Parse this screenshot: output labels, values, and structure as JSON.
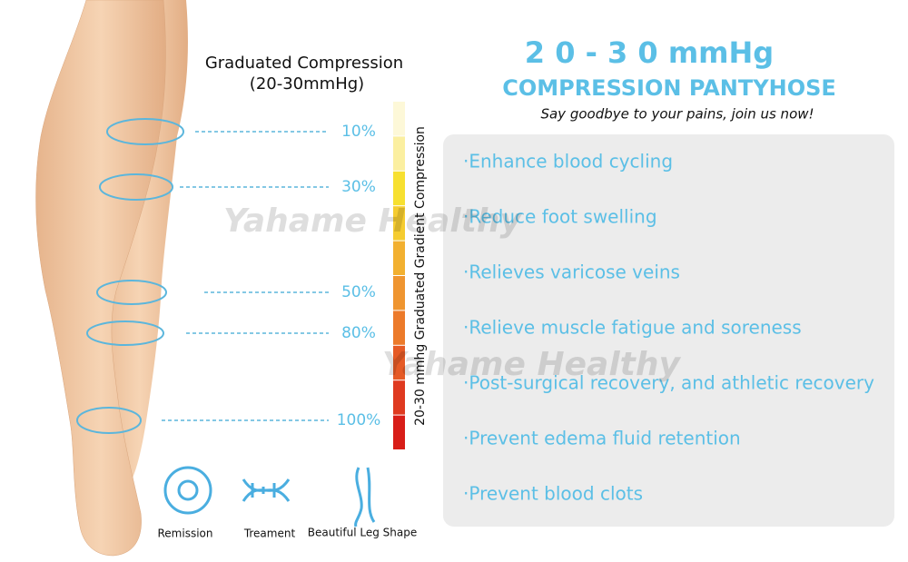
{
  "left_panel": {
    "title": "Graduated Compression",
    "subtitle": "(20-30mmHg)",
    "levels": [
      "10%",
      "30%",
      "50%",
      "80%",
      "100%"
    ],
    "scale_label": "20-30 mmhg Graduated Gradient Compression",
    "icons": [
      "Remission",
      "Treament",
      "Beautiful Leg Shape"
    ]
  },
  "watermark": "Yahame Healthy",
  "header": {
    "title": "2 0 - 3 0 mmHg",
    "subtitle": "COMPRESSION PANTYHOSE",
    "tagline": "Say goodbye to your pains, join us now!"
  },
  "features": [
    "·Enhance blood cycling",
    "·Reduce foot swelling",
    "·Relieves varicose veins",
    "·Relieve muscle fatigue and soreness",
    "·Post-surgical recovery, and athletic recovery",
    "·Prevent edema fluid retention",
    "·Prevent blood clots"
  ]
}
